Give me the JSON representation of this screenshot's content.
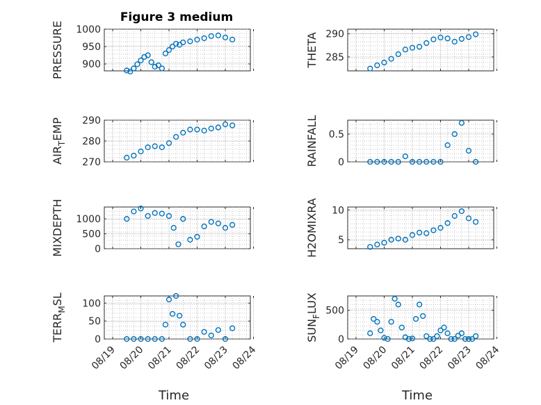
{
  "figure_title": "Figure 3 medium",
  "chart_data": [
    {
      "type": "scatter",
      "ylabel": "PRESSURE",
      "ylim": [
        880,
        1000
      ],
      "yticks": [
        900,
        950,
        1000
      ],
      "x_ticks": [
        "08/19",
        "08/20",
        "08/21",
        "08/22",
        "08/23",
        "08/24"
      ],
      "xlabel": "",
      "grid": true,
      "color": "#0072BD",
      "x": [
        "08/19 12:00",
        "08/19 15:00",
        "08/19 18:00",
        "08/19 21:00",
        "08/20 00:00",
        "08/20 03:00",
        "08/20 06:00",
        "08/20 09:00",
        "08/20 12:00",
        "08/20 15:00",
        "08/20 18:00",
        "08/20 21:00",
        "08/21 00:00",
        "08/21 03:00",
        "08/21 06:00",
        "08/21 09:00",
        "08/21 12:00",
        "08/21 18:00",
        "08/22 00:00",
        "08/22 06:00",
        "08/22 12:00",
        "08/22 18:00",
        "08/23 00:00",
        "08/23 06:00"
      ],
      "y": [
        881,
        878,
        887,
        899,
        910,
        920,
        925,
        905,
        892,
        896,
        887,
        930,
        940,
        950,
        958,
        955,
        962,
        965,
        970,
        974,
        980,
        982,
        976,
        970
      ]
    },
    {
      "type": "scatter",
      "ylabel": "THETA",
      "ylim": [
        282,
        291
      ],
      "yticks": [
        285,
        290
      ],
      "x_ticks": [
        "08/19",
        "08/20",
        "08/21",
        "08/22",
        "08/23",
        "08/24"
      ],
      "xlabel": "",
      "grid": true,
      "color": "#0072BD",
      "x": [
        "08/19 12:00",
        "08/19 18:00",
        "08/20 00:00",
        "08/20 06:00",
        "08/20 12:00",
        "08/20 18:00",
        "08/21 00:00",
        "08/21 06:00",
        "08/21 12:00",
        "08/21 18:00",
        "08/22 00:00",
        "08/22 06:00",
        "08/22 12:00",
        "08/22 18:00",
        "08/23 00:00",
        "08/23 06:00"
      ],
      "y": [
        282.5,
        283.2,
        283.8,
        284.6,
        285.6,
        286.6,
        287.0,
        287.2,
        288.0,
        288.8,
        289.2,
        289.0,
        288.3,
        288.9,
        289.3,
        289.9
      ]
    },
    {
      "type": "scatter",
      "ylabel": "AIR_TEMP",
      "ylim": [
        270,
        290
      ],
      "yticks": [
        270,
        280,
        290
      ],
      "x_ticks": [
        "08/19",
        "08/20",
        "08/21",
        "08/22",
        "08/23",
        "08/24"
      ],
      "xlabel": "",
      "grid": true,
      "color": "#0072BD",
      "x": [
        "08/19 12:00",
        "08/19 18:00",
        "08/20 00:00",
        "08/20 06:00",
        "08/20 12:00",
        "08/20 18:00",
        "08/21 00:00",
        "08/21 06:00",
        "08/21 12:00",
        "08/21 18:00",
        "08/22 00:00",
        "08/22 06:00",
        "08/22 12:00",
        "08/22 18:00",
        "08/23 00:00",
        "08/23 06:00"
      ],
      "y": [
        272,
        273,
        275,
        277,
        277.5,
        277,
        279,
        282,
        284,
        285.5,
        285.5,
        285,
        286,
        286.5,
        288,
        287.5
      ]
    },
    {
      "type": "scatter",
      "ylabel": "RAINFALL",
      "ylim": [
        0,
        0.75
      ],
      "yticks": [
        0,
        0.5
      ],
      "x_ticks": [
        "08/19",
        "08/20",
        "08/21",
        "08/22",
        "08/23",
        "08/24"
      ],
      "xlabel": "",
      "grid": true,
      "color": "#0072BD",
      "x": [
        "08/19 12:00",
        "08/19 18:00",
        "08/20 00:00",
        "08/20 06:00",
        "08/20 12:00",
        "08/20 18:00",
        "08/21 00:00",
        "08/21 06:00",
        "08/21 12:00",
        "08/21 18:00",
        "08/22 00:00",
        "08/22 06:00",
        "08/22 12:00",
        "08/22 18:00",
        "08/23 00:00",
        "08/23 06:00"
      ],
      "y": [
        0,
        0,
        0,
        0,
        0,
        0.1,
        0,
        0,
        0,
        0,
        0,
        0.3,
        0.5,
        0.7,
        0.2,
        0
      ]
    },
    {
      "type": "scatter",
      "ylabel": "MIXDEPTH",
      "ylim": [
        0,
        1400
      ],
      "yticks": [
        0,
        500,
        1000
      ],
      "x_ticks": [
        "08/19",
        "08/20",
        "08/21",
        "08/22",
        "08/23",
        "08/24"
      ],
      "xlabel": "",
      "grid": true,
      "color": "#0072BD",
      "x": [
        "08/19 12:00",
        "08/19 18:00",
        "08/20 00:00",
        "08/20 06:00",
        "08/20 12:00",
        "08/20 18:00",
        "08/21 00:00",
        "08/21 04:00",
        "08/21 08:00",
        "08/21 12:00",
        "08/21 18:00",
        "08/22 00:00",
        "08/22 06:00",
        "08/22 12:00",
        "08/22 18:00",
        "08/23 00:00",
        "08/23 06:00"
      ],
      "y": [
        1000,
        1250,
        1350,
        1100,
        1200,
        1180,
        1100,
        700,
        150,
        1000,
        300,
        400,
        750,
        900,
        850,
        700,
        800
      ]
    },
    {
      "type": "scatter",
      "ylabel": "H2OMIXRA",
      "ylim": [
        3.5,
        10.5
      ],
      "yticks": [
        5,
        10
      ],
      "x_ticks": [
        "08/19",
        "08/20",
        "08/21",
        "08/22",
        "08/23",
        "08/24"
      ],
      "xlabel": "",
      "grid": true,
      "color": "#0072BD",
      "x": [
        "08/19 12:00",
        "08/19 18:00",
        "08/20 00:00",
        "08/20 06:00",
        "08/20 12:00",
        "08/20 18:00",
        "08/21 00:00",
        "08/21 06:00",
        "08/21 12:00",
        "08/21 18:00",
        "08/22 00:00",
        "08/22 06:00",
        "08/22 12:00",
        "08/22 18:00",
        "08/23 00:00",
        "08/23 06:00"
      ],
      "y": [
        3.8,
        4.2,
        4.5,
        5.0,
        5.2,
        5.0,
        5.8,
        6.2,
        6.1,
        6.6,
        7.0,
        7.8,
        9.0,
        9.8,
        8.6,
        8.0
      ]
    },
    {
      "type": "scatter",
      "ylabel": "TERR_MSL",
      "ylim": [
        0,
        120
      ],
      "yticks": [
        0,
        50,
        100
      ],
      "x_ticks": [
        "08/19",
        "08/20",
        "08/21",
        "08/22",
        "08/23",
        "08/24"
      ],
      "xlabel": "Time",
      "grid": true,
      "color": "#0072BD",
      "x": [
        "08/19 12:00",
        "08/19 18:00",
        "08/20 00:00",
        "08/20 06:00",
        "08/20 12:00",
        "08/20 18:00",
        "08/20 21:00",
        "08/21 00:00",
        "08/21 03:00",
        "08/21 06:00",
        "08/21 09:00",
        "08/21 12:00",
        "08/21 18:00",
        "08/22 00:00",
        "08/22 06:00",
        "08/22 12:00",
        "08/22 18:00",
        "08/23 00:00",
        "08/23 06:00"
      ],
      "y": [
        0,
        0,
        0,
        0,
        0,
        0,
        40,
        110,
        70,
        120,
        65,
        40,
        0,
        0,
        20,
        10,
        25,
        0,
        30
      ]
    },
    {
      "type": "scatter",
      "ylabel": "SUN_FLUX",
      "ylim": [
        0,
        750
      ],
      "yticks": [
        0,
        500
      ],
      "x_ticks": [
        "08/19",
        "08/20",
        "08/21",
        "08/22",
        "08/23",
        "08/24"
      ],
      "xlabel": "Time",
      "grid": true,
      "color": "#0072BD",
      "x": [
        "08/19 12:00",
        "08/19 15:00",
        "08/19 18:00",
        "08/19 21:00",
        "08/20 00:00",
        "08/20 03:00",
        "08/20 06:00",
        "08/20 09:00",
        "08/20 12:00",
        "08/20 15:00",
        "08/20 18:00",
        "08/20 21:00",
        "08/21 00:00",
        "08/21 03:00",
        "08/21 06:00",
        "08/21 09:00",
        "08/21 12:00",
        "08/21 15:00",
        "08/21 18:00",
        "08/21 21:00",
        "08/22 00:00",
        "08/22 03:00",
        "08/22 06:00",
        "08/22 09:00",
        "08/22 12:00",
        "08/22 15:00",
        "08/22 18:00",
        "08/22 21:00",
        "08/23 00:00",
        "08/23 03:00",
        "08/23 06:00"
      ],
      "y": [
        100,
        350,
        300,
        150,
        20,
        0,
        300,
        700,
        600,
        200,
        30,
        0,
        10,
        350,
        600,
        400,
        50,
        0,
        0,
        50,
        150,
        200,
        100,
        0,
        0,
        60,
        100,
        0,
        0,
        0,
        50
      ]
    }
  ]
}
